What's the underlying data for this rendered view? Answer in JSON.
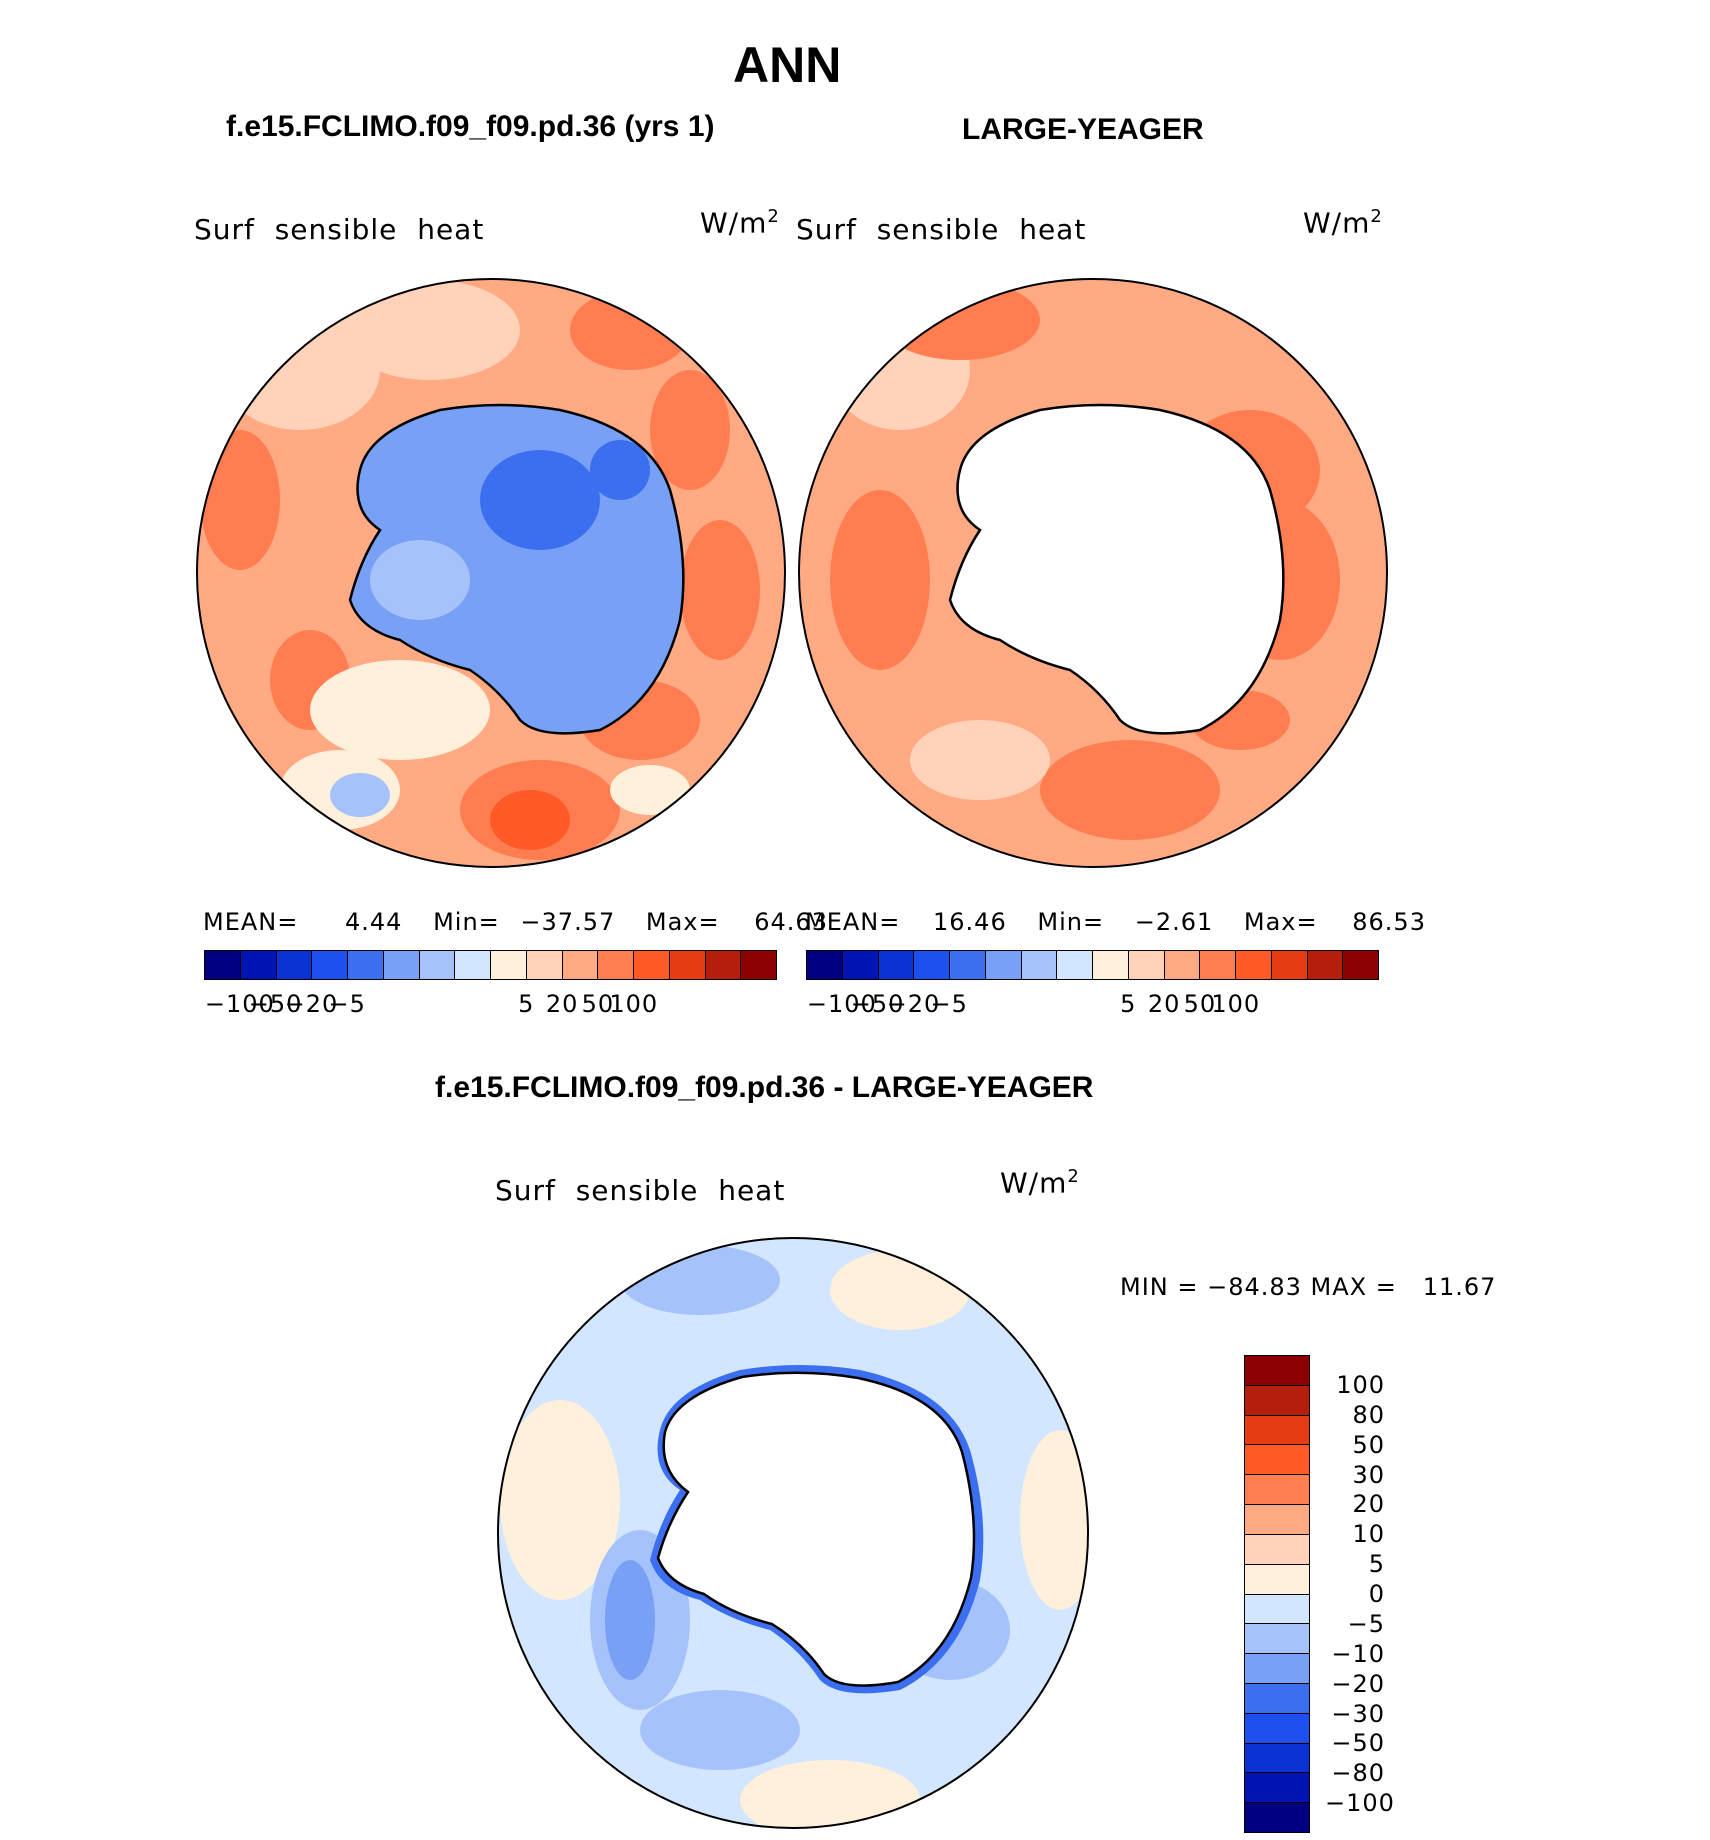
{
  "page": {
    "main_title": "ANN",
    "left_title": "f.e15.FCLIMO.f09_f09.pd.36 (yrs 1)",
    "right_title": "LARGE-YEAGER",
    "diff_title": "f.e15.FCLIMO.f09_f09.pd.36 - LARGE-YEAGER"
  },
  "panels": {
    "left": {
      "variable": "Surf  sensible  heat",
      "units": "W/m",
      "units_sup": "2",
      "stats": {
        "mean_label": "MEAN=",
        "mean": "4.44",
        "min_label": "Min=",
        "min": "−37.57",
        "max_label": "Max=",
        "max": "64.63"
      }
    },
    "right": {
      "variable": "Surf  sensible  heat",
      "units": "W/m",
      "units_sup": "2",
      "stats": {
        "mean_label": "MEAN=",
        "mean": "16.46",
        "min_label": "Min=",
        "min": "−2.61",
        "max_label": "Max=",
        "max": "86.53"
      }
    },
    "diff": {
      "variable": "Surf  sensible  heat",
      "units": "W/m",
      "units_sup": "2",
      "stats": "MIN = −84.83 MAX =   11.67"
    }
  },
  "colorbar_horizontal": {
    "colors": [
      "#000080",
      "#0014b4",
      "#0a32d2",
      "#1e50f0",
      "#3c6ef0",
      "#78a0f5",
      "#a5c3fa",
      "#d2e6ff",
      "#fff0dc",
      "#ffd2b9",
      "#ffaa82",
      "#ff7d50",
      "#ff5a28",
      "#e63c14",
      "#b41e0a",
      "#8c0000"
    ],
    "labels": [
      "−100",
      "−50",
      "−20",
      "−5",
      "5",
      "20",
      "50",
      "100"
    ]
  },
  "colorbar_vertical": {
    "colors": [
      "#8c0000",
      "#b41e0a",
      "#e63c14",
      "#ff5a28",
      "#ff7d50",
      "#ffaa82",
      "#ffd2b9",
      "#fff0dc",
      "#d2e6ff",
      "#a5c3fa",
      "#78a0f5",
      "#3c6ef0",
      "#1e50f0",
      "#0a32d2",
      "#0014b4",
      "#000080"
    ],
    "labels": [
      "100",
      "80",
      "50",
      "30",
      "20",
      "10",
      "5",
      "0",
      "−5",
      "−10",
      "−20",
      "−30",
      "−50",
      "−80",
      "−100"
    ]
  }
}
